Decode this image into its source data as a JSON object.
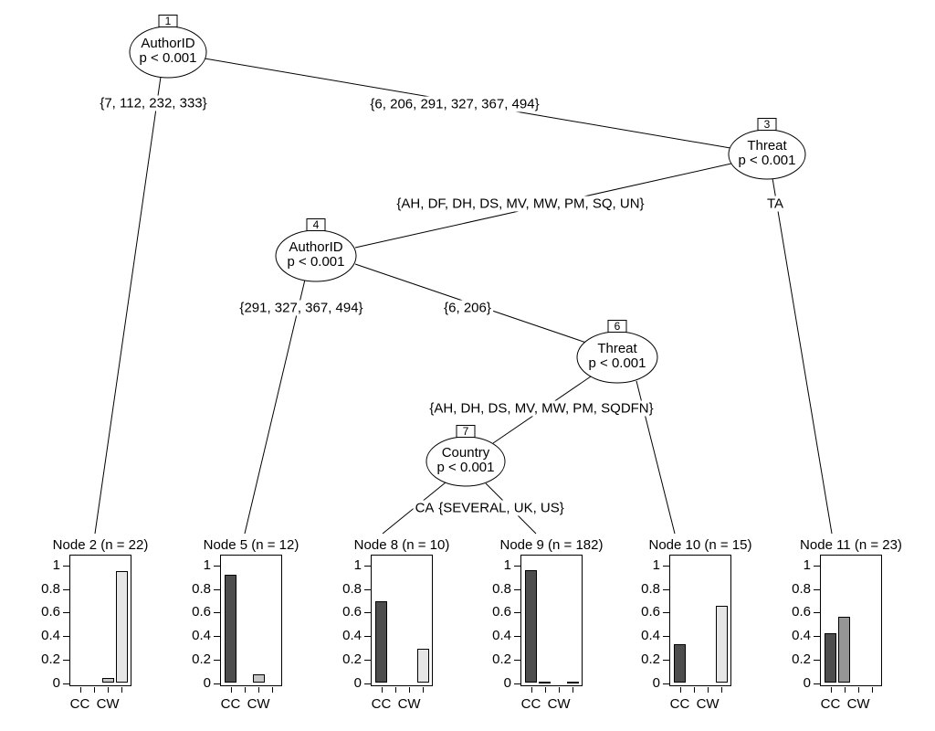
{
  "chart_data": {
    "type": "classification-tree-with-bar-terminals",
    "inner_nodes": [
      {
        "id": "1",
        "variable": "AuthorID",
        "p_label": "p < 0.001"
      },
      {
        "id": "3",
        "variable": "Threat",
        "p_label": "p < 0.001"
      },
      {
        "id": "4",
        "variable": "AuthorID",
        "p_label": "p < 0.001"
      },
      {
        "id": "6",
        "variable": "Threat",
        "p_label": "p < 0.001"
      },
      {
        "id": "7",
        "variable": "Country",
        "p_label": "p < 0.001"
      }
    ],
    "edges": [
      {
        "from": "1",
        "to": "2",
        "label": "{7, 112, 232, 333}"
      },
      {
        "from": "1",
        "to": "3",
        "label": "{6, 206, 291, 327, 367, 494}"
      },
      {
        "from": "3",
        "to": "4",
        "label": "{AH, DF, DH, DS, MV, MW, PM, SQ, UN}"
      },
      {
        "from": "3",
        "to": "11",
        "label": "TA"
      },
      {
        "from": "4",
        "to": "5",
        "label": "{291, 327, 367, 494}"
      },
      {
        "from": "4",
        "to": "6",
        "label": "{6, 206}"
      },
      {
        "from": "6",
        "to": "7",
        "label": "{AH, DH, DS, MV, MW, PM, SQDFN}"
      },
      {
        "from": "6",
        "to": "10",
        "label": ""
      },
      {
        "from": "7",
        "to": "8",
        "label": "CA"
      },
      {
        "from": "7",
        "to": "9",
        "label": "{SEVERAL, UK, US}"
      }
    ],
    "terminal_nodes": [
      {
        "title": "Node 2 (n = 22)",
        "values": [
          0,
          0,
          0.04,
          0.955
        ]
      },
      {
        "title": "Node 5 (n = 12)",
        "values": [
          0.92,
          0,
          0.075,
          0
        ]
      },
      {
        "title": "Node 8 (n = 10)",
        "values": [
          0.7,
          0,
          0,
          0.29
        ]
      },
      {
        "title": "Node 9 (n = 182)",
        "values": [
          0.96,
          0.01,
          0,
          0.015
        ]
      },
      {
        "title": "Node 10 (n = 15)",
        "values": [
          0.33,
          0,
          0,
          0.66
        ]
      },
      {
        "title": "Node 11 (n = 23)",
        "values": [
          0.425,
          0.565,
          0,
          0
        ]
      }
    ],
    "y_ticks": [
      "1",
      "0.8",
      "0.6",
      "0.4",
      "0.2",
      "0"
    ],
    "x_tick_labels": [
      "CC",
      "CW"
    ],
    "ylim": [
      0,
      1
    ],
    "bar_colors": [
      "#4d4d4d",
      "#969696",
      "#c6c6c6",
      "#e6e6e6"
    ],
    "line_color": "#000000"
  }
}
